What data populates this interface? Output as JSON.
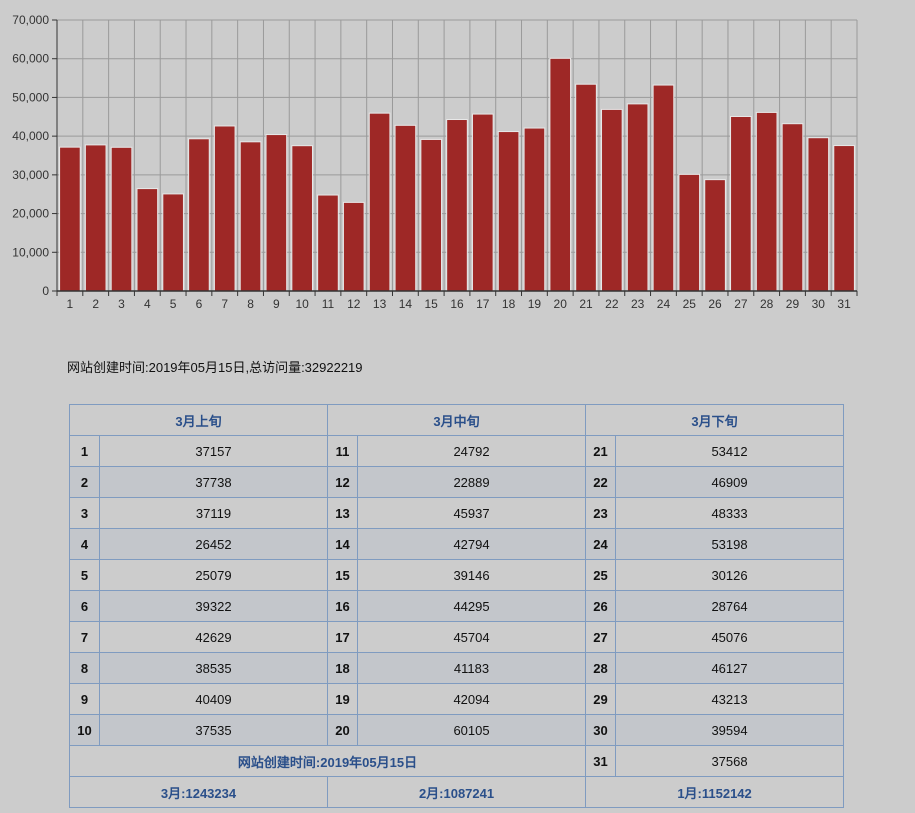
{
  "chart_data": {
    "type": "bar",
    "categories": [
      "1",
      "2",
      "3",
      "4",
      "5",
      "6",
      "7",
      "8",
      "9",
      "10",
      "11",
      "12",
      "13",
      "14",
      "15",
      "16",
      "17",
      "18",
      "19",
      "20",
      "21",
      "22",
      "23",
      "24",
      "25",
      "26",
      "27",
      "28",
      "29",
      "30",
      "31"
    ],
    "values": [
      37157,
      37738,
      37119,
      26452,
      25079,
      39322,
      42629,
      38535,
      40409,
      37535,
      24792,
      22889,
      45937,
      42794,
      39146,
      44295,
      45704,
      41183,
      42094,
      60105,
      53412,
      46909,
      48333,
      53198,
      30126,
      28764,
      45076,
      46127,
      43213,
      39594,
      37568
    ],
    "y_ticks": [
      "0",
      "10,000",
      "20,000",
      "30,000",
      "40,000",
      "50,000",
      "60,000",
      "70,000"
    ],
    "ylim": [
      0,
      70000
    ],
    "grid": true,
    "bar_color": "#9e2826"
  },
  "info_text": "网站创建时间:2019年05月15日,总访问量:32922219",
  "table": {
    "headers": [
      "3月上旬",
      "3月中旬",
      "3月下旬"
    ],
    "rows": [
      [
        [
          "1",
          "37157"
        ],
        [
          "11",
          "24792"
        ],
        [
          "21",
          "53412"
        ]
      ],
      [
        [
          "2",
          "37738"
        ],
        [
          "12",
          "22889"
        ],
        [
          "22",
          "46909"
        ]
      ],
      [
        [
          "3",
          "37119"
        ],
        [
          "13",
          "45937"
        ],
        [
          "23",
          "48333"
        ]
      ],
      [
        [
          "4",
          "26452"
        ],
        [
          "14",
          "42794"
        ],
        [
          "24",
          "53198"
        ]
      ],
      [
        [
          "5",
          "25079"
        ],
        [
          "15",
          "39146"
        ],
        [
          "25",
          "30126"
        ]
      ],
      [
        [
          "6",
          "39322"
        ],
        [
          "16",
          "44295"
        ],
        [
          "26",
          "28764"
        ]
      ],
      [
        [
          "7",
          "42629"
        ],
        [
          "17",
          "45704"
        ],
        [
          "27",
          "45076"
        ]
      ],
      [
        [
          "8",
          "38535"
        ],
        [
          "18",
          "41183"
        ],
        [
          "28",
          "46127"
        ]
      ],
      [
        [
          "9",
          "40409"
        ],
        [
          "19",
          "42094"
        ],
        [
          "29",
          "43213"
        ]
      ],
      [
        [
          "10",
          "37535"
        ],
        [
          "20",
          "60105"
        ],
        [
          "30",
          "39594"
        ]
      ]
    ],
    "created_label": "网站创建时间:2019年05月15日",
    "last_day": [
      "31",
      "37568"
    ],
    "monthly_totals": [
      "3月:1243234",
      "2月:1087241",
      "1月:1152142"
    ]
  }
}
